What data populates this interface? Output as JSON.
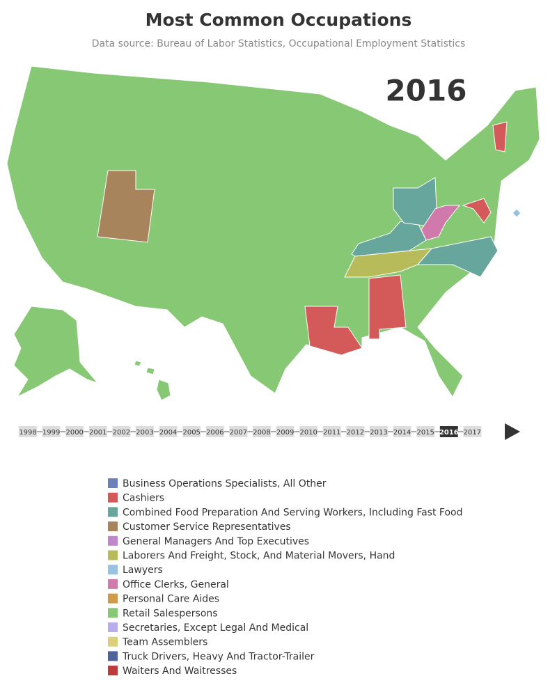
{
  "header": {
    "title": "Most Common Occupations",
    "subtitle": "Data source: Bureau of Labor Statistics, Occupational Employment Statistics",
    "current_year": "2016"
  },
  "timeline": {
    "years": [
      "1998",
      "1999",
      "2000",
      "2001",
      "2002",
      "2003",
      "2004",
      "2005",
      "2006",
      "2007",
      "2008",
      "2009",
      "2010",
      "2011",
      "2012",
      "2013",
      "2014",
      "2015",
      "2016",
      "2017"
    ],
    "selected": 18
  },
  "legend": {
    "items": [
      {
        "label": "Business Operations Specialists, All Other",
        "color": "#6d7fb8"
      },
      {
        "label": "Cashiers",
        "color": "#d45a5a"
      },
      {
        "label": "Combined Food Preparation And Serving Workers, Including Fast Food",
        "color": "#67a69d"
      },
      {
        "label": "Customer Service Representatives",
        "color": "#a8845c"
      },
      {
        "label": "General Managers And Top Executives",
        "color": "#bf88c9"
      },
      {
        "label": "Laborers And Freight, Stock, And Material Movers, Hand",
        "color": "#b8bb5a"
      },
      {
        "label": "Lawyers",
        "color": "#97c2e2"
      },
      {
        "label": "Office Clerks, General",
        "color": "#cf7aab"
      },
      {
        "label": "Personal Care Aides",
        "color": "#d09a4a"
      },
      {
        "label": "Retail Salespersons",
        "color": "#86c873"
      },
      {
        "label": "Secretaries, Except Legal And Medical",
        "color": "#b9aeeb"
      },
      {
        "label": "Team Assemblers",
        "color": "#dbcf7a"
      },
      {
        "label": "Truck Drivers, Heavy And Tractor-Trailer",
        "color": "#4e629c"
      },
      {
        "label": "Waiters And Waitresses",
        "color": "#bf3a3a"
      }
    ]
  }
}
